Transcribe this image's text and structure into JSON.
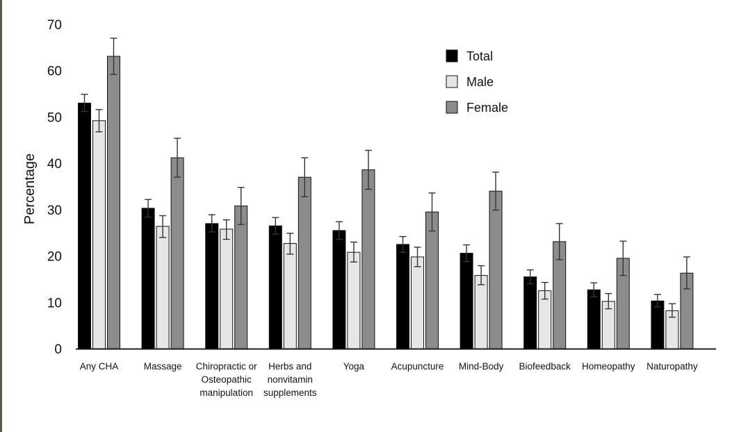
{
  "chart_data": {
    "type": "bar",
    "ylabel": "Percentage",
    "xlabel": "",
    "ylim": [
      0,
      70
    ],
    "yticks": [
      0,
      10,
      20,
      30,
      40,
      50,
      60,
      70
    ],
    "grid": false,
    "legend_position": "top-right",
    "categories": [
      [
        "Any CHA"
      ],
      [
        "Massage"
      ],
      [
        "Chiropractic or",
        "Osteopathic",
        "manipulation"
      ],
      [
        "Herbs and",
        "nonvitamin",
        "supplements"
      ],
      [
        "Yoga"
      ],
      [
        "Acupuncture"
      ],
      [
        "Mind-Body"
      ],
      [
        "Biofeedback"
      ],
      [
        "Homeopathy"
      ],
      [
        "Naturopathy"
      ]
    ],
    "series": [
      {
        "name": "Total",
        "color": "#000000",
        "values": [
          53.0,
          30.3,
          27.0,
          26.5,
          25.5,
          22.5,
          20.6,
          15.5,
          12.7,
          10.3
        ],
        "error_low": [
          51.2,
          28.4,
          25.2,
          24.7,
          23.6,
          20.8,
          18.8,
          14.0,
          11.2,
          9.0
        ],
        "error_high": [
          54.9,
          32.2,
          28.9,
          28.3,
          27.4,
          24.2,
          22.4,
          17.0,
          14.2,
          11.7
        ]
      },
      {
        "name": "Male",
        "color": "#e6e6e6",
        "values": [
          49.2,
          26.4,
          25.8,
          22.7,
          20.8,
          19.8,
          15.8,
          12.5,
          10.2,
          8.2
        ],
        "error_low": [
          46.8,
          24.0,
          23.6,
          20.4,
          18.7,
          17.7,
          13.8,
          10.7,
          8.6,
          6.8
        ],
        "error_high": [
          51.6,
          28.7,
          27.8,
          24.9,
          23.0,
          21.9,
          17.9,
          14.3,
          11.9,
          9.7
        ]
      },
      {
        "name": "Female",
        "color": "#8c8c8c",
        "values": [
          63.1,
          41.2,
          30.8,
          37.0,
          38.6,
          29.5,
          34.0,
          23.1,
          19.5,
          16.3
        ],
        "error_low": [
          59.2,
          37.0,
          26.8,
          32.8,
          34.4,
          25.4,
          29.9,
          19.2,
          15.8,
          12.9
        ],
        "error_high": [
          67.0,
          45.4,
          34.8,
          41.2,
          42.8,
          33.6,
          38.1,
          27.0,
          23.2,
          19.8
        ]
      }
    ]
  }
}
